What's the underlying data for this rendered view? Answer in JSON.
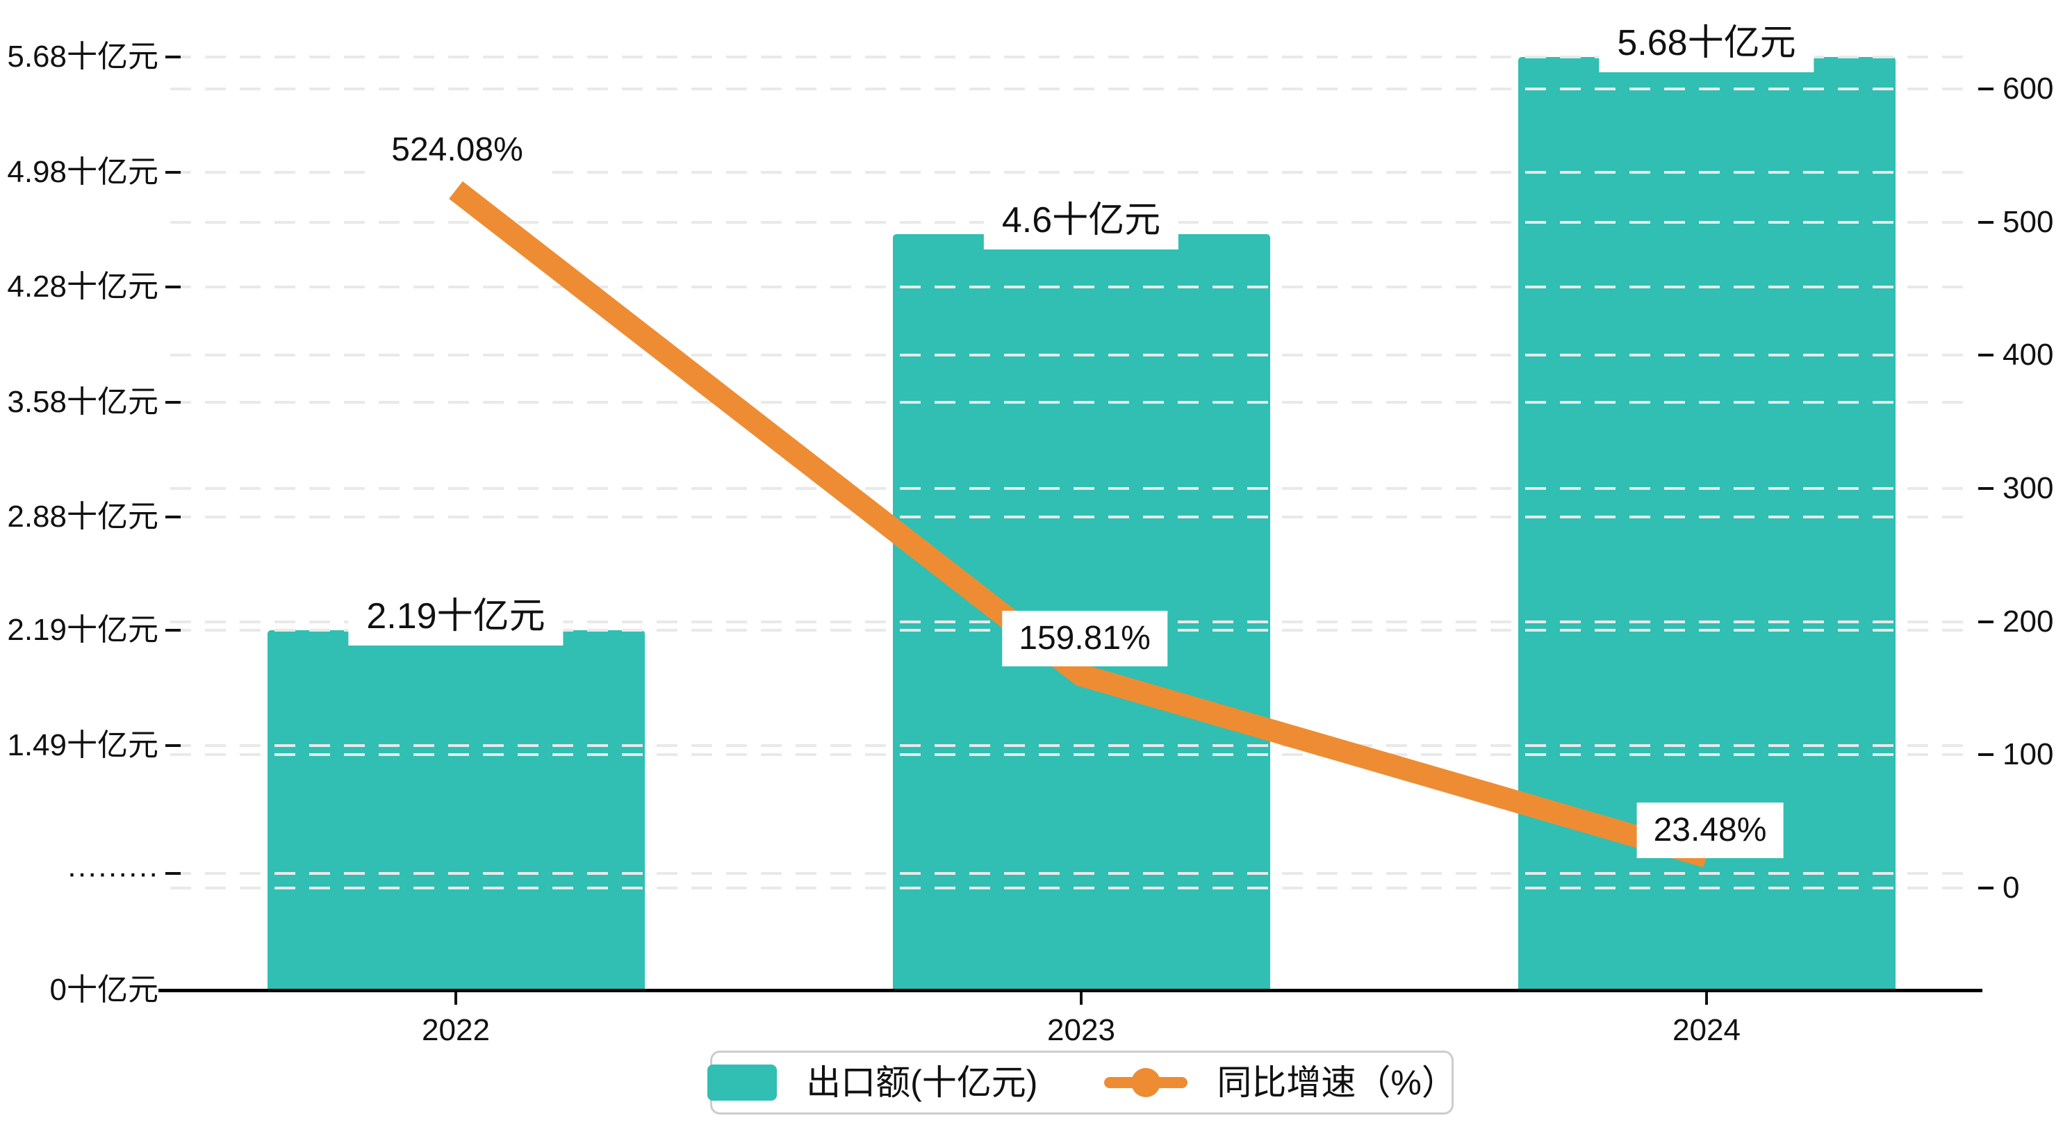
{
  "chart_data": {
    "type": "bar+line combo",
    "categories": [
      "2022",
      "2023",
      "2024"
    ],
    "series": [
      {
        "name": "出口额(十亿元)",
        "type": "bar",
        "values": [
          2.19,
          4.6,
          5.68
        ],
        "labels": [
          "2.19十亿元",
          "4.6十亿元",
          "5.68十亿元"
        ],
        "axis": "left",
        "color": "#30bfb2"
      },
      {
        "name": "同比增速（%）",
        "type": "line",
        "values": [
          524.08,
          159.81,
          23.48
        ],
        "labels": [
          "524.08%",
          "159.81%",
          "23.48%"
        ],
        "axis": "right",
        "color": "#ee8c33"
      }
    ],
    "left_axis": {
      "title": "",
      "unit": "十亿元",
      "range": [
        0,
        5.68
      ],
      "ticks": [
        {
          "label": "5.68十亿元",
          "value": 5.68
        },
        {
          "label": "4.98十亿元",
          "value": 4.98
        },
        {
          "label": "4.28十亿元",
          "value": 4.28
        },
        {
          "label": "3.58十亿元",
          "value": 3.58
        },
        {
          "label": "2.88十亿元",
          "value": 2.88
        },
        {
          "label": "2.19十亿元",
          "value": 2.19
        },
        {
          "label": "1.49十亿元",
          "value": 1.49
        },
        {
          "label": "·········",
          "value": 0.71
        },
        {
          "label": "0十亿元",
          "value": 0
        }
      ]
    },
    "right_axis": {
      "title": "",
      "unit": "%",
      "range": [
        0,
        600
      ],
      "ticks": [
        {
          "label": "600",
          "value": 600
        },
        {
          "label": "500",
          "value": 500
        },
        {
          "label": "400",
          "value": 400
        },
        {
          "label": "300",
          "value": 300
        },
        {
          "label": "200",
          "value": 200
        },
        {
          "label": "100",
          "value": 100
        },
        {
          "label": "0",
          "value": 0
        }
      ]
    },
    "legend": {
      "position": "bottom",
      "items": [
        "出口额(十亿元)",
        "同比增速（%）"
      ]
    },
    "grid": true
  },
  "colors": {
    "bar": "#30bfb2",
    "line": "#ee8c33",
    "axis": "#000000",
    "gridline": "#e9e9e9",
    "text": "#111111",
    "legend_border": "#cccccc",
    "background": "#ffffff"
  }
}
